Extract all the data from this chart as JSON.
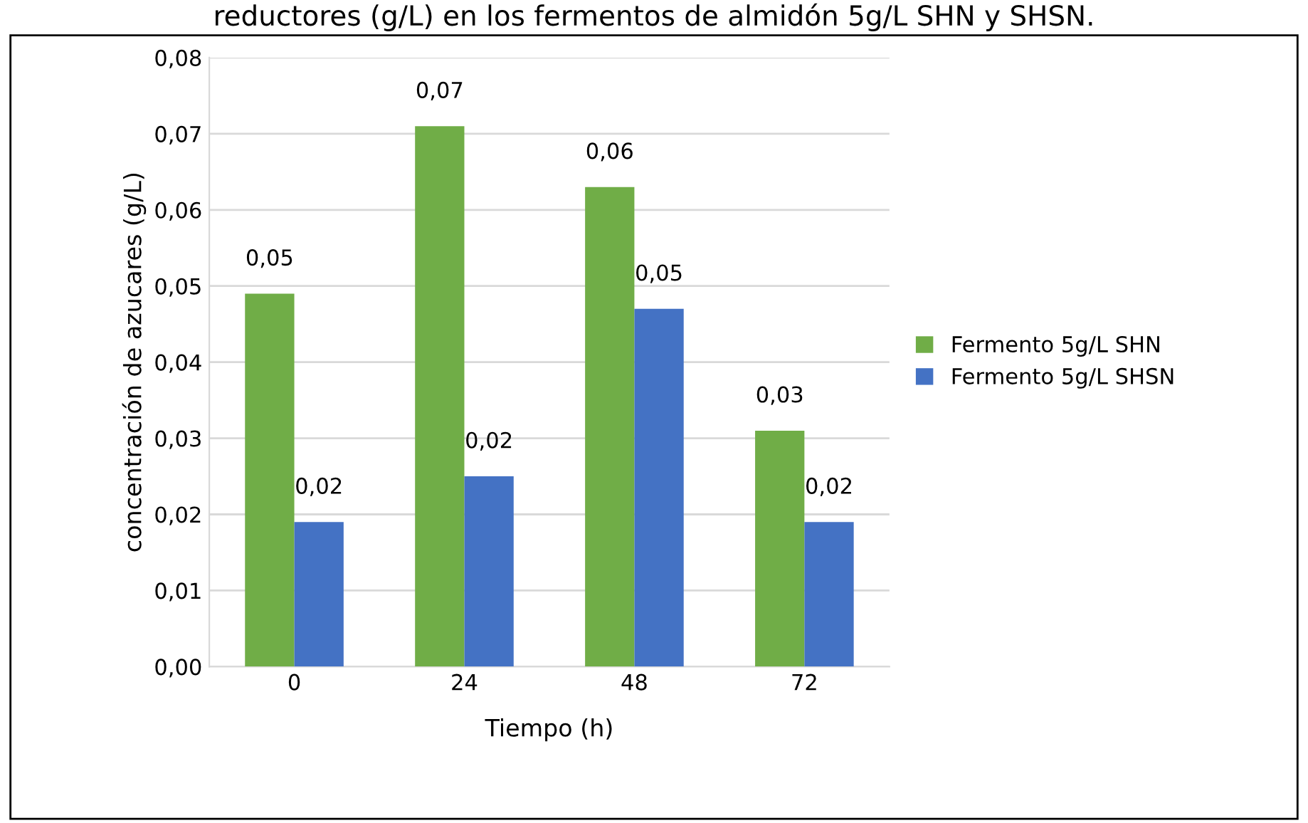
{
  "chart_data": {
    "type": "bar",
    "title": "reductores (g/L) en los fermentos de almidón 5g/L SHN y SHSN.",
    "xlabel": "Tiempo (h)",
    "ylabel": "concentración de azucares (g/L)",
    "categories": [
      "0",
      "24",
      "48",
      "72"
    ],
    "series": [
      {
        "name": "Fermento 5g/L SHN",
        "color": "#70ad47",
        "values": [
          0.049,
          0.071,
          0.063,
          0.031
        ],
        "value_labels": [
          "0,05",
          "0,07",
          "0,06",
          "0,03"
        ]
      },
      {
        "name": "Fermento 5g/L SHSN",
        "color": "#4472c4",
        "values": [
          0.019,
          0.025,
          0.047,
          0.019
        ],
        "value_labels": [
          "0,02",
          "0,02",
          "0,05",
          "0,02"
        ]
      }
    ],
    "ylim": [
      0,
      0.08
    ],
    "yticks": [
      {
        "value": 0,
        "label": "0,00"
      },
      {
        "value": 0.01,
        "label": "0,01"
      },
      {
        "value": 0.02,
        "label": "0,02"
      },
      {
        "value": 0.03,
        "label": "0,03"
      },
      {
        "value": 0.04,
        "label": "0,04"
      },
      {
        "value": 0.05,
        "label": "0,05"
      },
      {
        "value": 0.06,
        "label": "0,06"
      },
      {
        "value": 0.07,
        "label": "0,07"
      },
      {
        "value": 0.08,
        "label": "0,08"
      }
    ],
    "grid": "y",
    "legend": "right"
  }
}
